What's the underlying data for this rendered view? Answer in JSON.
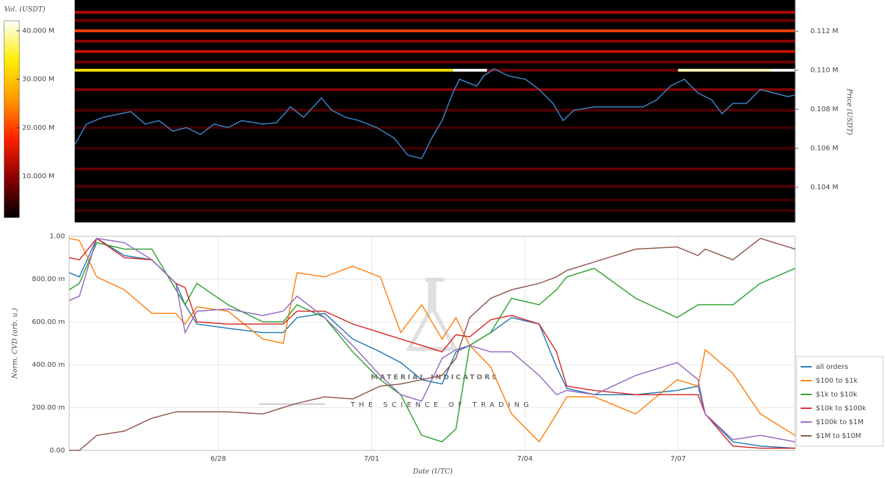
{
  "chart_data": [
    {
      "type": "heatmap",
      "colorbar_title": "Vol. (USDT)",
      "y_label": "Price (USDT)",
      "x": [
        -2.81,
        -2.58,
        -2.25,
        -1.91,
        -1.71,
        -1.43,
        -1.16,
        -0.89,
        -0.62,
        -0.35,
        -0.08,
        0.19,
        0.46,
        0.87,
        1.14,
        1.41,
        1.67,
        2.02,
        2.22,
        2.49,
        2.76,
        3.1,
        3.44,
        3.71,
        3.98,
        4.18,
        4.38,
        4.59,
        4.72,
        5.06,
        5.2,
        5.4,
        5.67,
        6.01,
        6.28,
        6.55,
        6.75,
        6.96,
        7.36,
        7.9,
        8.31,
        8.58,
        8.85,
        9.12,
        9.39,
        9.66,
        9.86,
        10.07,
        10.34,
        10.61,
        10.88,
        11.15,
        11.29
      ],
      "series": [
        {
          "color": "#3a7fc1",
          "values": [
            106180,
            107240,
            107590,
            107770,
            107880,
            107240,
            107420,
            106880,
            107060,
            106710,
            107240,
            107060,
            107420,
            107240,
            107310,
            108120,
            107590,
            108580,
            107950,
            107590,
            107420,
            107060,
            106530,
            105650,
            105470,
            106530,
            107420,
            108830,
            109540,
            109190,
            109720,
            110070,
            109720,
            109540,
            109010,
            108300,
            107420,
            107950,
            108120,
            108120,
            108120,
            108480,
            109190,
            109540,
            108830,
            108480,
            107770,
            108300,
            108300,
            109010,
            108830,
            108650,
            108730
          ]
        }
      ],
      "xlim": [
        -2.81,
        11.29
      ],
      "ylim": [
        102200,
        113600
      ],
      "yticks": [
        {
          "value": 104000,
          "label": "0.104 M"
        },
        {
          "value": 106000,
          "label": "0.106 M"
        },
        {
          "value": 108000,
          "label": "0.108 M"
        },
        {
          "value": 110000,
          "label": "0.110 M"
        },
        {
          "value": 112000,
          "label": "0.112 M"
        }
      ],
      "levels": [
        {
          "price": 112970,
          "volume": 12000000
        },
        {
          "price": 112550,
          "volume": 8000000
        },
        {
          "price": 112020,
          "volume": 20000000
        },
        {
          "price": 111490,
          "volume": 10000000
        },
        {
          "price": 110960,
          "volume": 14000000
        },
        {
          "price": 110420,
          "volume": 8000000
        },
        {
          "price": 110000,
          "x_range": [
            -2.81,
            4.59
          ],
          "volume": 33000000
        },
        {
          "price": 110000,
          "x_range": [
            4.59,
            5.26
          ],
          "volume": 42000000
        },
        {
          "price": 110000,
          "x_range": [
            5.26,
            9.0
          ],
          "volume": 8000000
        },
        {
          "price": 110000,
          "x_range": [
            9.0,
            10.83
          ],
          "volume": 40000000
        },
        {
          "price": 110000,
          "x_range": [
            10.83,
            11.29
          ],
          "volume": 42000000
        },
        {
          "price": 109010,
          "volume": 9000000
        },
        {
          "price": 107950,
          "volume": 6000000
        },
        {
          "price": 107060,
          "volume": 5000000
        },
        {
          "price": 106000,
          "volume": 5000000
        },
        {
          "price": 104940,
          "volume": 7000000
        },
        {
          "price": 104050,
          "volume": 6000000
        },
        {
          "price": 103350,
          "volume": 5000000
        },
        {
          "price": 102810,
          "volume": 5000000
        }
      ],
      "clim": [
        1400000,
        42100000
      ],
      "cticks": [
        {
          "value": 10000000,
          "label": "10.000 M"
        },
        {
          "value": 20000000,
          "label": "20.000 M"
        },
        {
          "value": 30000000,
          "label": "30.000 M"
        },
        {
          "value": 40000000,
          "label": "40.000 M"
        }
      ],
      "colormap": [
        "#000000",
        "#8b0000",
        "#ff2000",
        "#ff9900",
        "#ffee00",
        "#ffffff"
      ]
    },
    {
      "type": "line",
      "x_label": "Date (UTC)",
      "y_label": "Norm. CVD (arb. u.)",
      "watermark": "MATERIAL INDICATORS",
      "watermark_subtitle": "THE SCIENCE OF TRADING",
      "x": [
        -2.92,
        -2.72,
        -2.38,
        -1.84,
        -1.3,
        -0.83,
        -0.65,
        -0.42,
        0.19,
        0.87,
        1.27,
        1.54,
        2.08,
        2.63,
        3.17,
        3.57,
        3.98,
        4.38,
        4.65,
        4.92,
        5.33,
        5.74,
        6.28,
        6.62,
        6.82,
        7.36,
        8.17,
        8.98,
        9.39,
        9.53,
        10.07,
        10.61,
        11.29
      ],
      "series": [
        {
          "name": "all orders",
          "color": "#1f77b4",
          "values": [
            0.83,
            0.81,
            0.99,
            0.91,
            0.89,
            0.78,
            0.68,
            0.59,
            0.57,
            0.55,
            0.55,
            0.62,
            0.64,
            0.52,
            0.46,
            0.41,
            0.33,
            0.31,
            0.46,
            0.49,
            0.55,
            0.62,
            0.59,
            0.39,
            0.29,
            0.26,
            0.26,
            0.28,
            0.3,
            0.17,
            0.04,
            0.02,
            0.01
          ]
        },
        {
          "name": "$100 to $1k",
          "color": "#ff7f0e",
          "values": [
            0.99,
            0.98,
            0.81,
            0.75,
            0.64,
            0.64,
            0.59,
            0.67,
            0.65,
            0.52,
            0.5,
            0.83,
            0.81,
            0.86,
            0.81,
            0.55,
            0.68,
            0.52,
            0.62,
            0.49,
            0.39,
            0.17,
            0.04,
            0.17,
            0.25,
            0.25,
            0.17,
            0.33,
            0.3,
            0.47,
            0.36,
            0.17,
            0.07
          ]
        },
        {
          "name": "$1k to $10k",
          "color": "#2ca02c",
          "values": [
            0.75,
            0.78,
            0.97,
            0.94,
            0.94,
            0.75,
            0.68,
            0.78,
            0.68,
            0.6,
            0.6,
            0.68,
            0.62,
            0.46,
            0.33,
            0.26,
            0.07,
            0.04,
            0.1,
            0.49,
            0.55,
            0.71,
            0.68,
            0.75,
            0.81,
            0.85,
            0.71,
            0.62,
            0.68,
            0.68,
            0.68,
            0.78,
            0.85
          ]
        },
        {
          "name": "$10k to $100k",
          "color": "#d62728",
          "values": [
            0.9,
            0.89,
            0.99,
            0.9,
            0.89,
            0.78,
            0.76,
            0.6,
            0.59,
            0.59,
            0.59,
            0.65,
            0.65,
            0.59,
            0.55,
            0.52,
            0.49,
            0.46,
            0.54,
            0.53,
            0.61,
            0.63,
            0.59,
            0.46,
            0.3,
            0.28,
            0.26,
            0.26,
            0.26,
            0.17,
            0.02,
            0.01,
            0.01
          ]
        },
        {
          "name": "$100k to $1M",
          "color": "#9467bd",
          "values": [
            0.7,
            0.72,
            0.99,
            0.97,
            0.89,
            0.78,
            0.55,
            0.65,
            0.66,
            0.63,
            0.65,
            0.72,
            0.62,
            0.49,
            0.35,
            0.26,
            0.23,
            0.43,
            0.47,
            0.49,
            0.46,
            0.46,
            0.35,
            0.26,
            0.28,
            0.26,
            0.35,
            0.41,
            0.33,
            0.17,
            0.05,
            0.07,
            0.04
          ]
        },
        {
          "name": "$1M to $10M",
          "color": "#8c564b",
          "values": [
            0,
            0,
            0.07,
            0.09,
            0.15,
            0.18,
            0.18,
            0.18,
            0.18,
            0.17,
            0.2,
            0.22,
            0.25,
            0.24,
            0.3,
            0.31,
            0.33,
            0.35,
            0.43,
            0.62,
            0.71,
            0.75,
            0.78,
            0.81,
            0.84,
            0.88,
            0.94,
            0.95,
            0.91,
            0.94,
            0.89,
            0.99,
            0.94
          ]
        }
      ],
      "xlim": [
        -2.92,
        11.29
      ],
      "xticks": [
        {
          "value": 0,
          "label": "6/28"
        },
        {
          "value": 3,
          "label": "7/01"
        },
        {
          "value": 6,
          "label": "7/04"
        },
        {
          "value": 9,
          "label": "7/07"
        }
      ],
      "ylim": [
        0,
        1
      ],
      "yticks": [
        {
          "value": 0,
          "label": "0.00"
        },
        {
          "value": 0.2,
          "label": "200.00 m"
        },
        {
          "value": 0.4,
          "label": "400.00 m"
        },
        {
          "value": 0.6,
          "label": "600.00 m"
        },
        {
          "value": 0.8,
          "label": "800.00 m"
        },
        {
          "value": 1,
          "label": "1.00"
        }
      ],
      "grid": true,
      "legend": "lower right"
    }
  ]
}
